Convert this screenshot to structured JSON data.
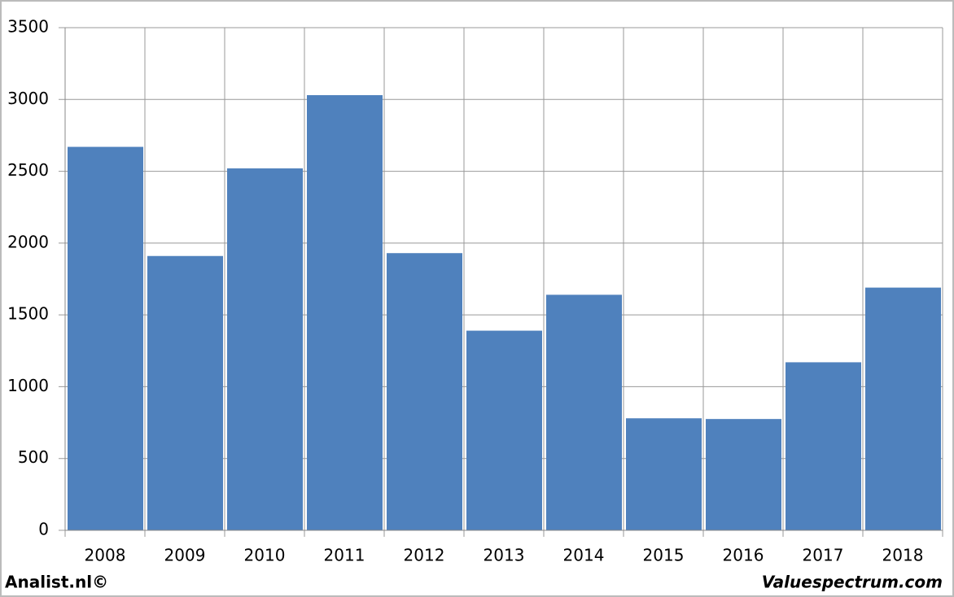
{
  "chart_data": {
    "type": "bar",
    "categories": [
      "2008",
      "2009",
      "2010",
      "2011",
      "2012",
      "2013",
      "2014",
      "2015",
      "2016",
      "2017",
      "2018"
    ],
    "values": [
      2670,
      1910,
      2520,
      3030,
      1930,
      1390,
      1640,
      780,
      775,
      1170,
      1690
    ],
    "color": "#4f81bd",
    "ylim": [
      0,
      3500
    ],
    "yticks": [
      0,
      500,
      1000,
      1500,
      2000,
      2500,
      3000,
      3500
    ],
    "grid": true
  },
  "footer": {
    "left": "Analist.nl©",
    "right": "Valuespectrum.com"
  }
}
